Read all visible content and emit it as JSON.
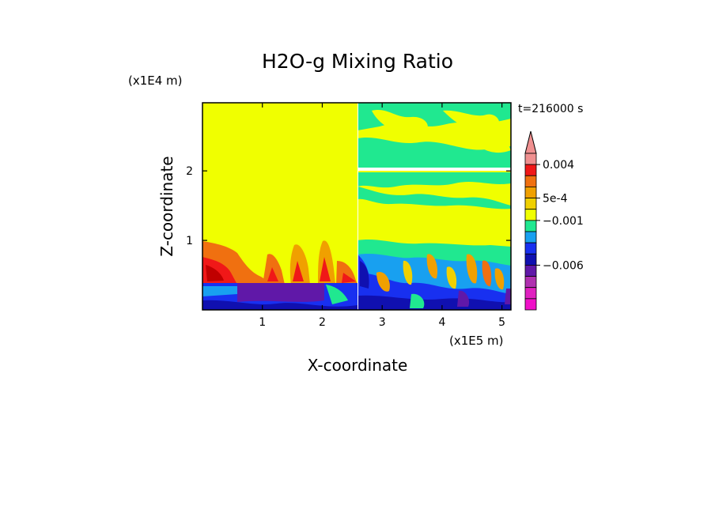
{
  "chart_data": {
    "type": "heatmap",
    "title": "H2O-g Mixing Ratio",
    "xlabel": "X-coordinate",
    "ylabel": "Z-coordinate",
    "x_scale_label": "(x1E5 m)",
    "y_scale_label": "(x1E4 m)",
    "time_label": "t=216000 s",
    "xlim": [
      0,
      5.15
    ],
    "ylim": [
      0,
      2.98
    ],
    "x_ticks": [
      1,
      2,
      3,
      4,
      5
    ],
    "x_tick_labels": [
      "1",
      "2",
      "3",
      "4",
      "5"
    ],
    "y_ticks": [
      1,
      2
    ],
    "y_tick_labels": [
      "1",
      "2"
    ],
    "colorbar": {
      "colors_top_to_bottom": [
        "#F09090",
        "#F01818",
        "#F07010",
        "#F0A000",
        "#F0D000",
        "#F0FF00",
        "#20E890",
        "#18A0F0",
        "#1830F0",
        "#1010B0",
        "#6018A8",
        "#B030B0",
        "#E020C0",
        "#F010C8"
      ],
      "labels": [
        {
          "text": "0.004",
          "after_swatch": 1
        },
        {
          "text": "5e-4",
          "after_swatch": 4
        },
        {
          "text": "−0.001",
          "after_swatch": 6
        },
        {
          "text": "−0.006",
          "after_swatch": 10
        }
      ]
    },
    "legend_position": "right",
    "grid": false
  }
}
